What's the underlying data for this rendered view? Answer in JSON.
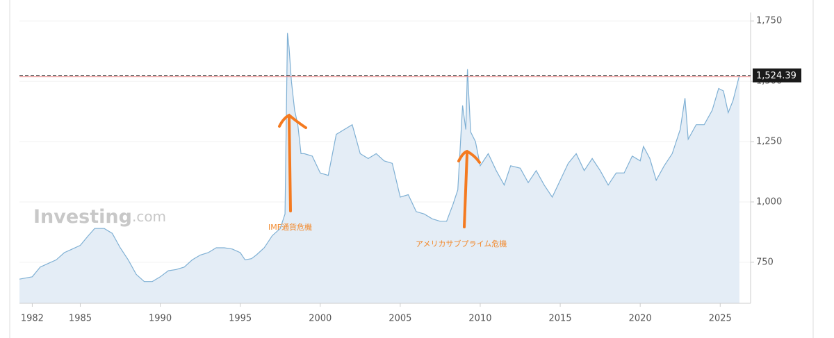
{
  "chart_data": {
    "type": "area",
    "watermark": {
      "brand": "Investing",
      "suffix": ".com"
    },
    "annotations": [
      "IMF通貨危機",
      "アメリカサブプライム危機"
    ],
    "current": {
      "value": 1524.39,
      "label": "1,524.39"
    },
    "xlim": [
      1981.2,
      2026.9
    ],
    "ylim": [
      580,
      1785
    ],
    "xticks": [
      1982,
      1985,
      1990,
      1995,
      2000,
      2005,
      2010,
      2015,
      2020,
      2025
    ],
    "yticks": [
      {
        "value": 750,
        "label": "750"
      },
      {
        "value": 1000,
        "label": "1,000"
      },
      {
        "value": 1250,
        "label": "1,250"
      },
      {
        "value": 1500,
        "label": "1,500"
      },
      {
        "value": 1750,
        "label": "1,750"
      }
    ],
    "grid": true,
    "color": "#7fb0d4",
    "fill": "#e4edf6",
    "x": [
      1981.2,
      1982,
      1982.5,
      1983,
      1983.5,
      1984,
      1984.5,
      1985,
      1985.5,
      1985.9,
      1986.5,
      1987,
      1987.5,
      1988,
      1988.5,
      1989,
      1989.5,
      1990,
      1990.5,
      1991,
      1991.5,
      1992,
      1992.5,
      1993,
      1993.5,
      1994,
      1994.5,
      1995,
      1995.3,
      1995.7,
      1996,
      1996.5,
      1997,
      1997.5,
      1997.8,
      1997.95,
      1998.05,
      1998.2,
      1998.4,
      1998.6,
      1998.8,
      1999,
      1999.5,
      2000,
      2000.5,
      2001,
      2001.5,
      2002,
      2002.5,
      2003,
      2003.5,
      2004,
      2004.5,
      2005,
      2005.5,
      2006,
      2006.5,
      2007,
      2007.5,
      2007.9,
      2008.3,
      2008.6,
      2008.9,
      2009.1,
      2009.2,
      2009.4,
      2009.7,
      2010,
      2010.5,
      2011,
      2011.5,
      2011.9,
      2012.5,
      2013,
      2013.5,
      2014,
      2014.5,
      2015,
      2015.5,
      2016,
      2016.5,
      2017,
      2017.5,
      2018,
      2018.5,
      2019,
      2019.5,
      2020,
      2020.2,
      2020.6,
      2021,
      2021.5,
      2022,
      2022.5,
      2022.8,
      2023,
      2023.5,
      2024,
      2024.5,
      2024.9,
      2025.2,
      2025.5,
      2025.8,
      2026.2
    ],
    "values": [
      680,
      690,
      730,
      745,
      760,
      790,
      805,
      820,
      860,
      890,
      890,
      870,
      810,
      760,
      700,
      670,
      670,
      690,
      715,
      720,
      730,
      760,
      780,
      790,
      810,
      810,
      805,
      790,
      760,
      765,
      780,
      810,
      860,
      890,
      950,
      1700,
      1640,
      1500,
      1380,
      1320,
      1200,
      1200,
      1190,
      1120,
      1110,
      1280,
      1300,
      1320,
      1200,
      1180,
      1200,
      1170,
      1160,
      1020,
      1030,
      960,
      950,
      930,
      920,
      920,
      990,
      1050,
      1400,
      1300,
      1550,
      1290,
      1250,
      1150,
      1200,
      1130,
      1070,
      1150,
      1140,
      1080,
      1130,
      1070,
      1020,
      1090,
      1160,
      1200,
      1130,
      1180,
      1130,
      1070,
      1120,
      1120,
      1190,
      1170,
      1230,
      1180,
      1090,
      1150,
      1200,
      1300,
      1430,
      1260,
      1320,
      1320,
      1380,
      1470,
      1460,
      1370,
      1420,
      1524.39
    ]
  }
}
